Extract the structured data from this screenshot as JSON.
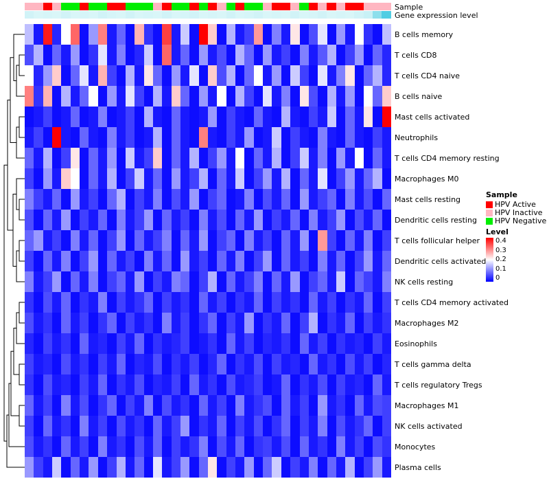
{
  "chart_data": {
    "type": "heatmap",
    "rows": [
      "B cells memory",
      "T cells CD8",
      "T cells CD4 naive",
      "B cells naive",
      "Mast cells activated",
      "Neutrophils",
      "T cells CD4 memory resting",
      "Macrophages M0",
      "Mast cells resting",
      "Dendritic cells resting",
      "T cells follicular helper",
      "Dendritic cells activated",
      "NK cells resting",
      "T cells CD4 memory activated",
      "Macrophages M2",
      "Eosinophils",
      "T cells gamma delta",
      "T cells regulatory Tregs",
      "Macrophages M1",
      "NK cells activated",
      "Monocytes",
      "Plasma cells"
    ],
    "value_range": [
      0,
      0.4
    ],
    "colormap": {
      "low": "#0000FF",
      "mid": "#FFFFFF",
      "high": "#FF0000"
    },
    "annotation_rows": [
      {
        "label": "Sample",
        "type": "categorical",
        "values": [
          "HPV Inactive",
          "HPV Inactive",
          "HPV Active",
          "HPV Inactive",
          "HPV Negative",
          "HPV Negative",
          "HPV Active",
          "HPV Negative",
          "HPV Negative",
          "HPV Active",
          "HPV Active",
          "HPV Negative",
          "HPV Negative",
          "HPV Negative",
          "HPV Inactive",
          "HPV Active",
          "HPV Negative",
          "HPV Negative",
          "HPV Active",
          "HPV Negative",
          "HPV Active",
          "HPV Inactive",
          "HPV Negative",
          "HPV Active",
          "HPV Negative",
          "HPV Negative",
          "HPV Inactive",
          "HPV Active",
          "HPV Active",
          "HPV Inactive",
          "HPV Negative",
          "HPV Active",
          "HPV Inactive",
          "HPV Active",
          "HPV Inactive",
          "HPV Active",
          "HPV Active",
          "HPV Inactive",
          "HPV Inactive",
          "HPV Inactive"
        ]
      },
      {
        "label": "Gene expression level",
        "type": "continuous",
        "values": [
          0.15,
          0.1,
          0.12,
          0.1,
          0.15,
          0.1,
          0.12,
          0.1,
          0.15,
          0.12,
          0.1,
          0.15,
          0.1,
          0.12,
          0.1,
          0.15,
          0.1,
          0.12,
          0.15,
          0.1,
          0.12,
          0.1,
          0.15,
          0.1,
          0.12,
          0.15,
          0.1,
          0.12,
          0.1,
          0.15,
          0.1,
          0.12,
          0.15,
          0.1,
          0.12,
          0.1,
          0.15,
          0.2,
          0.55,
          0.9
        ]
      }
    ],
    "matrix": [
      [
        0.15,
        0.02,
        0.38,
        0.03,
        0.2,
        0.32,
        0.01,
        0.12,
        0.3,
        0.02,
        0.08,
        0.01,
        0.26,
        0.04,
        0.01,
        0.35,
        0.02,
        0.16,
        0.01,
        0.4,
        0.24,
        0.01,
        0.14,
        0.02,
        0.05,
        0.28,
        0.01,
        0.1,
        0.02,
        0.22,
        0.01,
        0.06,
        0.18,
        0.01,
        0.12,
        0.02,
        0.2,
        0.04,
        0.01,
        0.15
      ],
      [
        0.06,
        0.14,
        0.01,
        0.08,
        0.02,
        0.12,
        0.01,
        0.04,
        0.18,
        0.02,
        0.1,
        0.01,
        0.03,
        0.16,
        0.01,
        0.32,
        0.02,
        0.08,
        0.01,
        0.12,
        0.02,
        0.06,
        0.01,
        0.14,
        0.08,
        0.01,
        0.12,
        0.02,
        0.05,
        0.01,
        0.1,
        0.02,
        0.07,
        0.14,
        0.01,
        0.05,
        0.12,
        0.01,
        0.08,
        0.03
      ],
      [
        0.2,
        0.03,
        0.12,
        0.24,
        0.01,
        0.08,
        0.18,
        0.02,
        0.26,
        0.05,
        0.01,
        0.14,
        0.02,
        0.22,
        0.08,
        0.01,
        0.12,
        0.02,
        0.18,
        0.01,
        0.24,
        0.06,
        0.14,
        0.01,
        0.08,
        0.2,
        0.02,
        0.12,
        0.01,
        0.16,
        0.05,
        0.01,
        0.18,
        0.02,
        0.1,
        0.22,
        0.01,
        0.08,
        0.14,
        0.03
      ],
      [
        0.3,
        0.04,
        0.26,
        0.01,
        0.14,
        0.02,
        0.08,
        0.2,
        0.01,
        0.12,
        0.02,
        0.18,
        0.05,
        0.01,
        0.14,
        0.02,
        0.24,
        0.08,
        0.01,
        0.12,
        0.02,
        0.2,
        0.01,
        0.14,
        0.05,
        0.01,
        0.18,
        0.02,
        0.1,
        0.01,
        0.22,
        0.06,
        0.01,
        0.14,
        0.02,
        0.12,
        0.01,
        0.2,
        0.08,
        0.24
      ],
      [
        0.01,
        0.02,
        0.05,
        0.01,
        0.02,
        0.08,
        0.01,
        0.02,
        0.1,
        0.01,
        0.02,
        0.05,
        0.01,
        0.14,
        0.02,
        0.01,
        0.08,
        0.02,
        0.01,
        0.02,
        0.12,
        0.01,
        0.05,
        0.02,
        0.01,
        0.08,
        0.02,
        0.01,
        0.14,
        0.02,
        0.01,
        0.05,
        0.02,
        0.16,
        0.01,
        0.08,
        0.02,
        0.22,
        0.01,
        0.4
      ],
      [
        0.02,
        0.05,
        0.01,
        0.4,
        0.02,
        0.01,
        0.08,
        0.02,
        0.01,
        0.1,
        0.02,
        0.05,
        0.01,
        0.02,
        0.14,
        0.01,
        0.08,
        0.02,
        0.01,
        0.3,
        0.02,
        0.01,
        0.05,
        0.02,
        0.12,
        0.01,
        0.02,
        0.16,
        0.01,
        0.05,
        0.02,
        0.01,
        0.1,
        0.02,
        0.01,
        0.08,
        0.02,
        0.01,
        0.05,
        0.02
      ],
      [
        0.08,
        0.02,
        0.14,
        0.01,
        0.05,
        0.22,
        0.01,
        0.08,
        0.02,
        0.12,
        0.01,
        0.16,
        0.02,
        0.05,
        0.24,
        0.01,
        0.08,
        0.02,
        0.14,
        0.01,
        0.05,
        0.12,
        0.02,
        0.2,
        0.01,
        0.08,
        0.02,
        0.14,
        0.01,
        0.05,
        0.16,
        0.02,
        0.1,
        0.01,
        0.12,
        0.02,
        0.2,
        0.01,
        0.08,
        0.02
      ],
      [
        0.05,
        0.01,
        0.12,
        0.02,
        0.24,
        0.2,
        0.01,
        0.08,
        0.02,
        0.14,
        0.01,
        0.05,
        0.16,
        0.02,
        0.08,
        0.01,
        0.12,
        0.02,
        0.05,
        0.14,
        0.01,
        0.08,
        0.02,
        0.16,
        0.01,
        0.05,
        0.12,
        0.02,
        0.14,
        0.01,
        0.08,
        0.02,
        0.18,
        0.01,
        0.05,
        0.12,
        0.02,
        0.08,
        0.14,
        0.01
      ],
      [
        0.1,
        0.05,
        0.02,
        0.08,
        0.01,
        0.12,
        0.02,
        0.05,
        0.01,
        0.08,
        0.14,
        0.01,
        0.05,
        0.02,
        0.1,
        0.01,
        0.06,
        0.02,
        0.12,
        0.01,
        0.05,
        0.08,
        0.01,
        0.02,
        0.1,
        0.01,
        0.06,
        0.02,
        0.08,
        0.01,
        0.12,
        0.02,
        0.05,
        0.08,
        0.01,
        0.1,
        0.02,
        0.06,
        0.01,
        0.08
      ],
      [
        0.06,
        0.01,
        0.08,
        0.02,
        0.12,
        0.01,
        0.05,
        0.02,
        0.08,
        0.01,
        0.1,
        0.02,
        0.05,
        0.12,
        0.01,
        0.08,
        0.02,
        0.05,
        0.01,
        0.1,
        0.02,
        0.06,
        0.01,
        0.08,
        0.02,
        0.12,
        0.01,
        0.05,
        0.02,
        0.08,
        0.01,
        0.1,
        0.02,
        0.05,
        0.12,
        0.01,
        0.06,
        0.02,
        0.08,
        0.01
      ],
      [
        0.08,
        0.12,
        0.02,
        0.05,
        0.01,
        0.1,
        0.02,
        0.08,
        0.01,
        0.05,
        0.12,
        0.01,
        0.08,
        0.02,
        0.05,
        0.1,
        0.01,
        0.08,
        0.02,
        0.12,
        0.01,
        0.05,
        0.08,
        0.01,
        0.1,
        0.02,
        0.05,
        0.01,
        0.08,
        0.02,
        0.12,
        0.01,
        0.28,
        0.05,
        0.01,
        0.08,
        0.02,
        0.1,
        0.01,
        0.05
      ],
      [
        0.05,
        0.01,
        0.08,
        0.02,
        0.1,
        0.01,
        0.05,
        0.12,
        0.01,
        0.08,
        0.02,
        0.05,
        0.01,
        0.1,
        0.02,
        0.08,
        0.01,
        0.12,
        0.02,
        0.05,
        0.01,
        0.08,
        0.02,
        0.1,
        0.01,
        0.05,
        0.12,
        0.01,
        0.08,
        0.02,
        0.05,
        0.01,
        0.1,
        0.02,
        0.08,
        0.01,
        0.05,
        0.12,
        0.02,
        0.08
      ],
      [
        0.1,
        0.02,
        0.05,
        0.12,
        0.01,
        0.08,
        0.02,
        0.1,
        0.01,
        0.05,
        0.08,
        0.02,
        0.12,
        0.01,
        0.05,
        0.02,
        0.1,
        0.08,
        0.01,
        0.05,
        0.14,
        0.01,
        0.08,
        0.02,
        0.05,
        0.1,
        0.01,
        0.08,
        0.02,
        0.12,
        0.01,
        0.05,
        0.08,
        0.02,
        0.16,
        0.01,
        0.08,
        0.05,
        0.02,
        0.1
      ],
      [
        0.04,
        0.01,
        0.06,
        0.02,
        0.08,
        0.01,
        0.04,
        0.02,
        0.1,
        0.01,
        0.05,
        0.02,
        0.04,
        0.08,
        0.01,
        0.05,
        0.02,
        0.04,
        0.01,
        0.08,
        0.02,
        0.05,
        0.01,
        0.04,
        0.02,
        0.08,
        0.01,
        0.05,
        0.02,
        0.04,
        0.01,
        0.08,
        0.02,
        0.05,
        0.01,
        0.04,
        0.02,
        0.08,
        0.01,
        0.05
      ],
      [
        0.06,
        0.02,
        0.04,
        0.01,
        0.08,
        0.02,
        0.05,
        0.01,
        0.04,
        0.08,
        0.01,
        0.05,
        0.02,
        0.04,
        0.01,
        0.1,
        0.02,
        0.05,
        0.01,
        0.04,
        0.08,
        0.01,
        0.05,
        0.02,
        0.12,
        0.01,
        0.04,
        0.02,
        0.08,
        0.01,
        0.05,
        0.14,
        0.01,
        0.04,
        0.02,
        0.08,
        0.01,
        0.05,
        0.02,
        0.04
      ],
      [
        0.03,
        0.01,
        0.05,
        0.02,
        0.04,
        0.01,
        0.08,
        0.02,
        0.03,
        0.01,
        0.05,
        0.02,
        0.08,
        0.01,
        0.04,
        0.02,
        0.03,
        0.05,
        0.01,
        0.02,
        0.04,
        0.01,
        0.08,
        0.02,
        0.05,
        0.01,
        0.03,
        0.02,
        0.04,
        0.01,
        0.08,
        0.02,
        0.05,
        0.01,
        0.04,
        0.02,
        0.03,
        0.01,
        0.05,
        0.02
      ],
      [
        0.05,
        0.02,
        0.03,
        0.01,
        0.06,
        0.02,
        0.04,
        0.01,
        0.05,
        0.02,
        0.08,
        0.01,
        0.03,
        0.02,
        0.06,
        0.01,
        0.04,
        0.02,
        0.05,
        0.01,
        0.03,
        0.08,
        0.01,
        0.04,
        0.02,
        0.06,
        0.01,
        0.05,
        0.02,
        0.03,
        0.01,
        0.08,
        0.02,
        0.04,
        0.01,
        0.06,
        0.02,
        0.05,
        0.01,
        0.03
      ],
      [
        0.04,
        0.01,
        0.06,
        0.02,
        0.03,
        0.01,
        0.05,
        0.02,
        0.08,
        0.01,
        0.04,
        0.02,
        0.06,
        0.01,
        0.03,
        0.02,
        0.05,
        0.01,
        0.08,
        0.02,
        0.04,
        0.01,
        0.06,
        0.02,
        0.03,
        0.05,
        0.01,
        0.02,
        0.08,
        0.01,
        0.04,
        0.02,
        0.06,
        0.01,
        0.05,
        0.02,
        0.03,
        0.01,
        0.08,
        0.02
      ],
      [
        0.08,
        0.02,
        0.05,
        0.01,
        0.1,
        0.02,
        0.06,
        0.01,
        0.04,
        0.08,
        0.01,
        0.05,
        0.02,
        0.1,
        0.01,
        0.06,
        0.02,
        0.04,
        0.01,
        0.08,
        0.02,
        0.05,
        0.01,
        0.1,
        0.02,
        0.04,
        0.06,
        0.01,
        0.08,
        0.02,
        0.05,
        0.01,
        0.12,
        0.02,
        0.04,
        0.01,
        0.08,
        0.02,
        0.06,
        0.05
      ],
      [
        0.05,
        0.01,
        0.08,
        0.02,
        0.04,
        0.01,
        0.1,
        0.02,
        0.05,
        0.01,
        0.06,
        0.02,
        0.04,
        0.01,
        0.08,
        0.02,
        0.05,
        0.12,
        0.01,
        0.04,
        0.02,
        0.08,
        0.01,
        0.05,
        0.02,
        0.06,
        0.01,
        0.04,
        0.08,
        0.01,
        0.05,
        0.02,
        0.1,
        0.01,
        0.06,
        0.02,
        0.04,
        0.08,
        0.01,
        0.05
      ],
      [
        0.06,
        0.02,
        0.04,
        0.01,
        0.08,
        0.02,
        0.05,
        0.01,
        0.1,
        0.02,
        0.04,
        0.01,
        0.06,
        0.02,
        0.08,
        0.01,
        0.05,
        0.02,
        0.04,
        0.1,
        0.01,
        0.06,
        0.02,
        0.08,
        0.01,
        0.04,
        0.05,
        0.02,
        0.06,
        0.01,
        0.08,
        0.02,
        0.04,
        0.01,
        0.1,
        0.02,
        0.05,
        0.01,
        0.06,
        0.04
      ],
      [
        0.12,
        0.05,
        0.02,
        0.16,
        0.01,
        0.08,
        0.02,
        0.12,
        0.01,
        0.05,
        0.14,
        0.02,
        0.08,
        0.01,
        0.18,
        0.02,
        0.05,
        0.12,
        0.01,
        0.08,
        0.22,
        0.01,
        0.05,
        0.02,
        0.12,
        0.01,
        0.08,
        0.16,
        0.01,
        0.05,
        0.02,
        0.1,
        0.01,
        0.08,
        0.02,
        0.14,
        0.01,
        0.05,
        0.12,
        0.02
      ]
    ]
  },
  "legend": {
    "sample": {
      "title": "Sample",
      "items": [
        {
          "label": "HPV Active",
          "color": "#FF0000"
        },
        {
          "label": "HPV Inactive",
          "color": "#FFB6C1"
        },
        {
          "label": "HPV Negative",
          "color": "#00EE00"
        }
      ]
    },
    "level": {
      "title": "Level",
      "ticks": [
        "0.4",
        "0.3",
        "0.2",
        "0.1",
        "0"
      ]
    }
  }
}
